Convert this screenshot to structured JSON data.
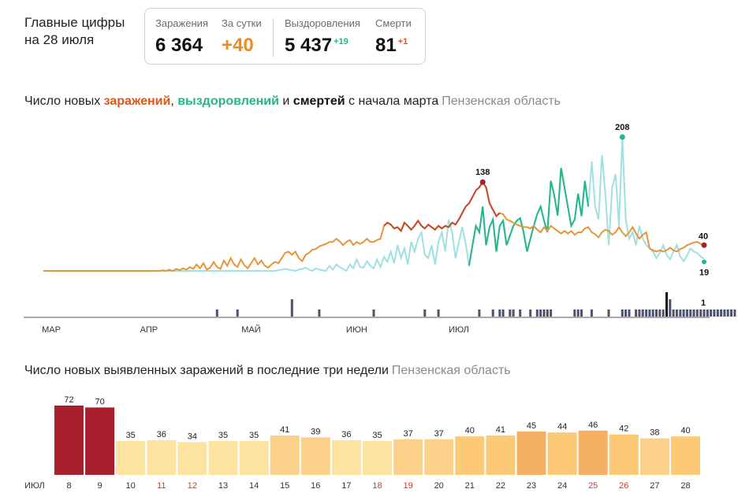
{
  "header": {
    "title_line1": "Главные цифры",
    "title_line2": "на 28 июля"
  },
  "stats": {
    "infections_label": "Заражения",
    "infections_value": "6 364",
    "daily_label": "За сутки",
    "daily_value": "+40",
    "recoveries_label": "Выздоровления",
    "recoveries_value": "5 437",
    "recoveries_delta": "+19",
    "deaths_label": "Смерти",
    "deaths_value": "81",
    "deaths_delta": "+1"
  },
  "colors": {
    "infections": "#e0561a",
    "infections_line": "#e8953a",
    "infections_peak_line": "#c64a2a",
    "recoveries": "#25b58c",
    "recoveries_light": "#9fe0e2",
    "deaths": "#4d5270",
    "bar_dark_red": "#a8202e",
    "bar_light": "#fde3a0",
    "bar_mid": "#fbd08a",
    "bar_orange": "#f5b062",
    "weekend_text": "#d23a2a"
  },
  "chart1": {
    "title_prefix": "Число новых ",
    "title_infections": "заражений",
    "title_sep1": ", ",
    "title_recoveries": "выздоровлений",
    "title_sep2": " и ",
    "title_deaths": "смертей",
    "title_suffix": " с начала марта",
    "region": "Пензенская область"
  },
  "chart2": {
    "title": "Число новых выявленных заражений в последние три недели",
    "region": "Пензенская область"
  },
  "chart_data": [
    {
      "type": "line",
      "x_tick_labels": [
        "МАР",
        "АПР",
        "МАЙ",
        "ИЮН",
        "ИЮЛ"
      ],
      "series": [
        {
          "name": "заражения",
          "values": [
            0,
            0,
            0,
            0,
            0,
            0,
            0,
            0,
            0,
            0,
            0,
            0,
            0,
            0,
            0,
            0,
            0,
            0,
            0,
            0,
            0,
            0,
            0,
            0,
            0,
            0,
            0,
            0,
            0,
            0,
            0,
            0,
            0,
            0,
            0,
            1,
            0,
            2,
            0,
            3,
            1,
            4,
            2,
            6,
            3,
            10,
            4,
            12,
            2,
            5,
            14,
            6,
            3,
            16,
            8,
            20,
            10,
            6,
            18,
            9,
            4,
            12,
            20,
            10,
            16,
            8,
            5,
            10,
            14,
            12,
            20,
            28,
            30,
            25,
            30,
            20,
            15,
            25,
            28,
            33,
            34,
            38,
            40,
            42,
            45,
            45,
            50,
            46,
            40,
            45,
            48,
            40,
            45,
            42,
            45,
            50,
            45,
            45,
            48,
            50,
            70,
            75,
            72,
            66,
            68,
            62,
            75,
            70,
            64,
            70,
            78,
            70,
            66,
            72,
            68,
            64,
            70,
            66,
            70,
            68,
            75,
            72,
            80,
            90,
            100,
            105,
            115,
            125,
            130,
            138,
            130,
            105,
            95,
            85,
            90,
            88,
            80,
            78,
            75,
            72,
            70,
            68,
            68,
            66,
            70,
            64,
            60,
            68,
            62,
            70,
            66,
            62,
            58,
            62,
            58,
            62,
            56,
            60,
            60,
            66,
            68,
            60,
            57,
            52,
            60,
            64,
            62,
            56,
            60,
            68,
            60,
            54,
            60,
            68,
            58,
            50,
            56,
            60,
            35,
            32,
            30,
            32,
            30,
            32,
            36,
            32,
            30,
            34,
            36,
            40,
            42,
            44,
            45,
            42,
            40
          ]
        },
        {
          "name": "выздоровления",
          "values": [
            0,
            0,
            0,
            0,
            0,
            0,
            0,
            0,
            0,
            0,
            0,
            0,
            0,
            0,
            0,
            0,
            0,
            0,
            0,
            0,
            0,
            0,
            0,
            0,
            0,
            0,
            0,
            0,
            0,
            0,
            0,
            0,
            0,
            0,
            0,
            0,
            0,
            0,
            0,
            0,
            0,
            0,
            0,
            0,
            0,
            0,
            0,
            0,
            0,
            0,
            0,
            0,
            0,
            0,
            0,
            0,
            0,
            0,
            0,
            0,
            0,
            0,
            0,
            0,
            0,
            0,
            0,
            0,
            0,
            1,
            2,
            3,
            2,
            1,
            0,
            2,
            3,
            5,
            2,
            0,
            4,
            2,
            1,
            0,
            8,
            2,
            10,
            6,
            3,
            0,
            10,
            4,
            18,
            6,
            5,
            15,
            8,
            4,
            18,
            6,
            22,
            14,
            30,
            12,
            40,
            20,
            35,
            10,
            45,
            30,
            50,
            60,
            25,
            20,
            40,
            10,
            45,
            60,
            30,
            80,
            60,
            20,
            45,
            68,
            42,
            8,
            40,
            70,
            60,
            100,
            40,
            68,
            80,
            30,
            70,
            78,
            40,
            55,
            70,
            78,
            82,
            60,
            30,
            50,
            70,
            88,
            100,
            78,
            60,
            140,
            118,
            86,
            160,
            130,
            100,
            70,
            80,
            120,
            85,
            140,
            100,
            170,
            100,
            80,
            180,
            120,
            40,
            130,
            150,
            70,
            208,
            80,
            50,
            60,
            40,
            70,
            50,
            40,
            35,
            30,
            20,
            28,
            40,
            25,
            18,
            30,
            40,
            22,
            15,
            24,
            35,
            30,
            28,
            22,
            19
          ]
        },
        {
          "name": "смерти",
          "values_note": "bars along baseline"
        }
      ],
      "annotations": [
        {
          "label": "138",
          "series": "заражения"
        },
        {
          "label": "208",
          "series": "выздоровления"
        },
        {
          "label": "40",
          "series": "заражения"
        },
        {
          "label": "19",
          "series": "выздоровления"
        },
        {
          "label": "1",
          "series": "смерти"
        }
      ],
      "deaths_bars": [
        0,
        0,
        0,
        0,
        0,
        0,
        0,
        0,
        0,
        0,
        0,
        0,
        0,
        0,
        0,
        0,
        0,
        0,
        0,
        0,
        0,
        0,
        0,
        0,
        0,
        0,
        0,
        0,
        0,
        0,
        0,
        0,
        0,
        0,
        0,
        0,
        0,
        0,
        0,
        0,
        0,
        0,
        0,
        0,
        0,
        0,
        0,
        0,
        0,
        0,
        0,
        1,
        0,
        0,
        0,
        0,
        0,
        1,
        0,
        0,
        0,
        0,
        0,
        0,
        0,
        0,
        0,
        0,
        0,
        0,
        0,
        0,
        0,
        2,
        0,
        0,
        0,
        0,
        0,
        0,
        0,
        1,
        0,
        0,
        0,
        0,
        0,
        0,
        0,
        0,
        0,
        0,
        0,
        0,
        0,
        0,
        0,
        1,
        0,
        0,
        0,
        0,
        0,
        0,
        0,
        0,
        0,
        0,
        0,
        0,
        0,
        0,
        1,
        0,
        0,
        0,
        1,
        0,
        0,
        0,
        0,
        0,
        0,
        0,
        0,
        0,
        0,
        0,
        1,
        0,
        0,
        0,
        1,
        0,
        1,
        1,
        0,
        1,
        1,
        0,
        1,
        0,
        0,
        1,
        0,
        1,
        1,
        1,
        1,
        1,
        0,
        0,
        0,
        0,
        0,
        0,
        1,
        1,
        1,
        0,
        0,
        1,
        0,
        0,
        0,
        0,
        1,
        0,
        0,
        0,
        1,
        1,
        1,
        0,
        1,
        1,
        1,
        1,
        1,
        1,
        1,
        1,
        1,
        3,
        2,
        1,
        1,
        1,
        1,
        1,
        1,
        1,
        1,
        1,
        1,
        1,
        1,
        1,
        1,
        1,
        1,
        1,
        1,
        1
      ]
    },
    {
      "type": "bar",
      "month_label": "ИЮЛ",
      "categories": [
        "8",
        "9",
        "10",
        "11",
        "12",
        "13",
        "14",
        "15",
        "16",
        "17",
        "18",
        "19",
        "20",
        "21",
        "22",
        "23",
        "24",
        "25",
        "26",
        "27",
        "28"
      ],
      "values": [
        72,
        70,
        35,
        36,
        34,
        35,
        35,
        41,
        39,
        36,
        35,
        37,
        37,
        40,
        41,
        45,
        44,
        46,
        42,
        38,
        40
      ],
      "weekend_categories": [
        "11",
        "12",
        "18",
        "19",
        "25",
        "26"
      ]
    }
  ]
}
